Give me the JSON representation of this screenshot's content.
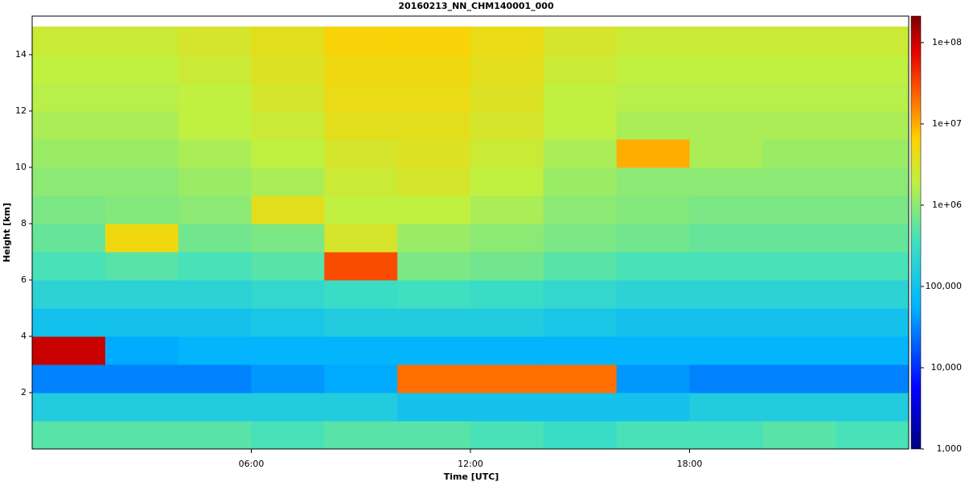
{
  "chart_data": {
    "type": "heatmap",
    "title": "20160213_NN_CHM140001_000",
    "x_label": "Time [UTC]",
    "y_label": "Height [km]",
    "x": [
      1,
      3,
      5,
      7,
      9,
      11,
      13,
      15,
      17,
      19,
      21,
      23
    ],
    "y": [
      0.5,
      1.5,
      2.5,
      3.5,
      4.5,
      5.5,
      6.5,
      7.5,
      8.5,
      9.5,
      10.5,
      11.5,
      12.5,
      13.5,
      14.5
    ],
    "z": [
      [
        500000,
        500000,
        500000,
        400000,
        500000,
        500000,
        400000,
        300000,
        400000,
        400000,
        500000,
        400000
      ],
      [
        150000,
        150000,
        150000,
        150000,
        150000,
        100000,
        100000,
        100000,
        100000,
        150000,
        150000,
        150000
      ],
      [
        30000,
        30000,
        30000,
        40000,
        50000,
        20000000,
        20000000,
        20000000,
        40000,
        30000,
        30000,
        30000
      ],
      [
        100000000,
        50000,
        60000,
        60000,
        60000,
        60000,
        60000,
        60000,
        60000,
        60000,
        60000,
        60000
      ],
      [
        100000,
        100000,
        100000,
        120000,
        150000,
        150000,
        150000,
        120000,
        100000,
        100000,
        100000,
        100000
      ],
      [
        200000,
        200000,
        200000,
        250000,
        300000,
        350000,
        300000,
        250000,
        200000,
        200000,
        200000,
        200000
      ],
      [
        400000,
        500000,
        400000,
        500000,
        30000000,
        800000,
        700000,
        500000,
        400000,
        400000,
        400000,
        400000
      ],
      [
        600000,
        5000000,
        700000,
        800000,
        3000000,
        1200000,
        1000000,
        800000,
        700000,
        600000,
        600000,
        600000
      ],
      [
        800000,
        900000,
        1000000,
        4000000,
        2000000,
        2000000,
        1500000,
        1000000,
        900000,
        800000,
        800000,
        800000
      ],
      [
        1000000,
        1000000,
        1200000,
        1500000,
        2500000,
        3000000,
        2000000,
        1200000,
        1000000,
        1000000,
        1000000,
        1000000
      ],
      [
        1200000,
        1200000,
        1500000,
        2000000,
        3000000,
        3500000,
        2500000,
        1500000,
        10000000,
        1500000,
        1200000,
        1200000
      ],
      [
        1500000,
        1500000,
        2000000,
        2500000,
        4000000,
        4000000,
        3000000,
        2000000,
        1500000,
        1500000,
        1500000,
        1500000
      ],
      [
        1800000,
        1800000,
        2000000,
        3000000,
        4500000,
        4500000,
        3500000,
        2000000,
        1800000,
        1800000,
        1800000,
        1800000
      ],
      [
        2000000,
        2000000,
        2500000,
        3500000,
        5000000,
        5000000,
        4000000,
        2500000,
        2000000,
        2000000,
        2000000,
        2000000
      ],
      [
        2500000,
        2500000,
        3000000,
        4000000,
        6000000,
        6000000,
        4500000,
        3000000,
        2500000,
        2500000,
        2500000,
        2500000
      ]
    ],
    "xlim": [
      0,
      24
    ],
    "xticks": [
      {
        "value": 6,
        "label": "06:00"
      },
      {
        "value": 12,
        "label": "12:00"
      },
      {
        "value": 18,
        "label": "18:00"
      }
    ],
    "ylim": [
      0,
      15.37
    ],
    "yticks": [
      2,
      4,
      6,
      8,
      10,
      12,
      14
    ],
    "clim": [
      1000,
      212000000
    ],
    "cscale": "log",
    "cticks": [
      {
        "value": 1000,
        "label": "1,000"
      },
      {
        "value": 10000,
        "label": "10,000"
      },
      {
        "value": 100000,
        "label": "100,000"
      },
      {
        "value": 1000000,
        "label": "1e+06"
      },
      {
        "value": 10000000,
        "label": "1e+07"
      },
      {
        "value": 100000000,
        "label": "1e+08"
      }
    ]
  }
}
